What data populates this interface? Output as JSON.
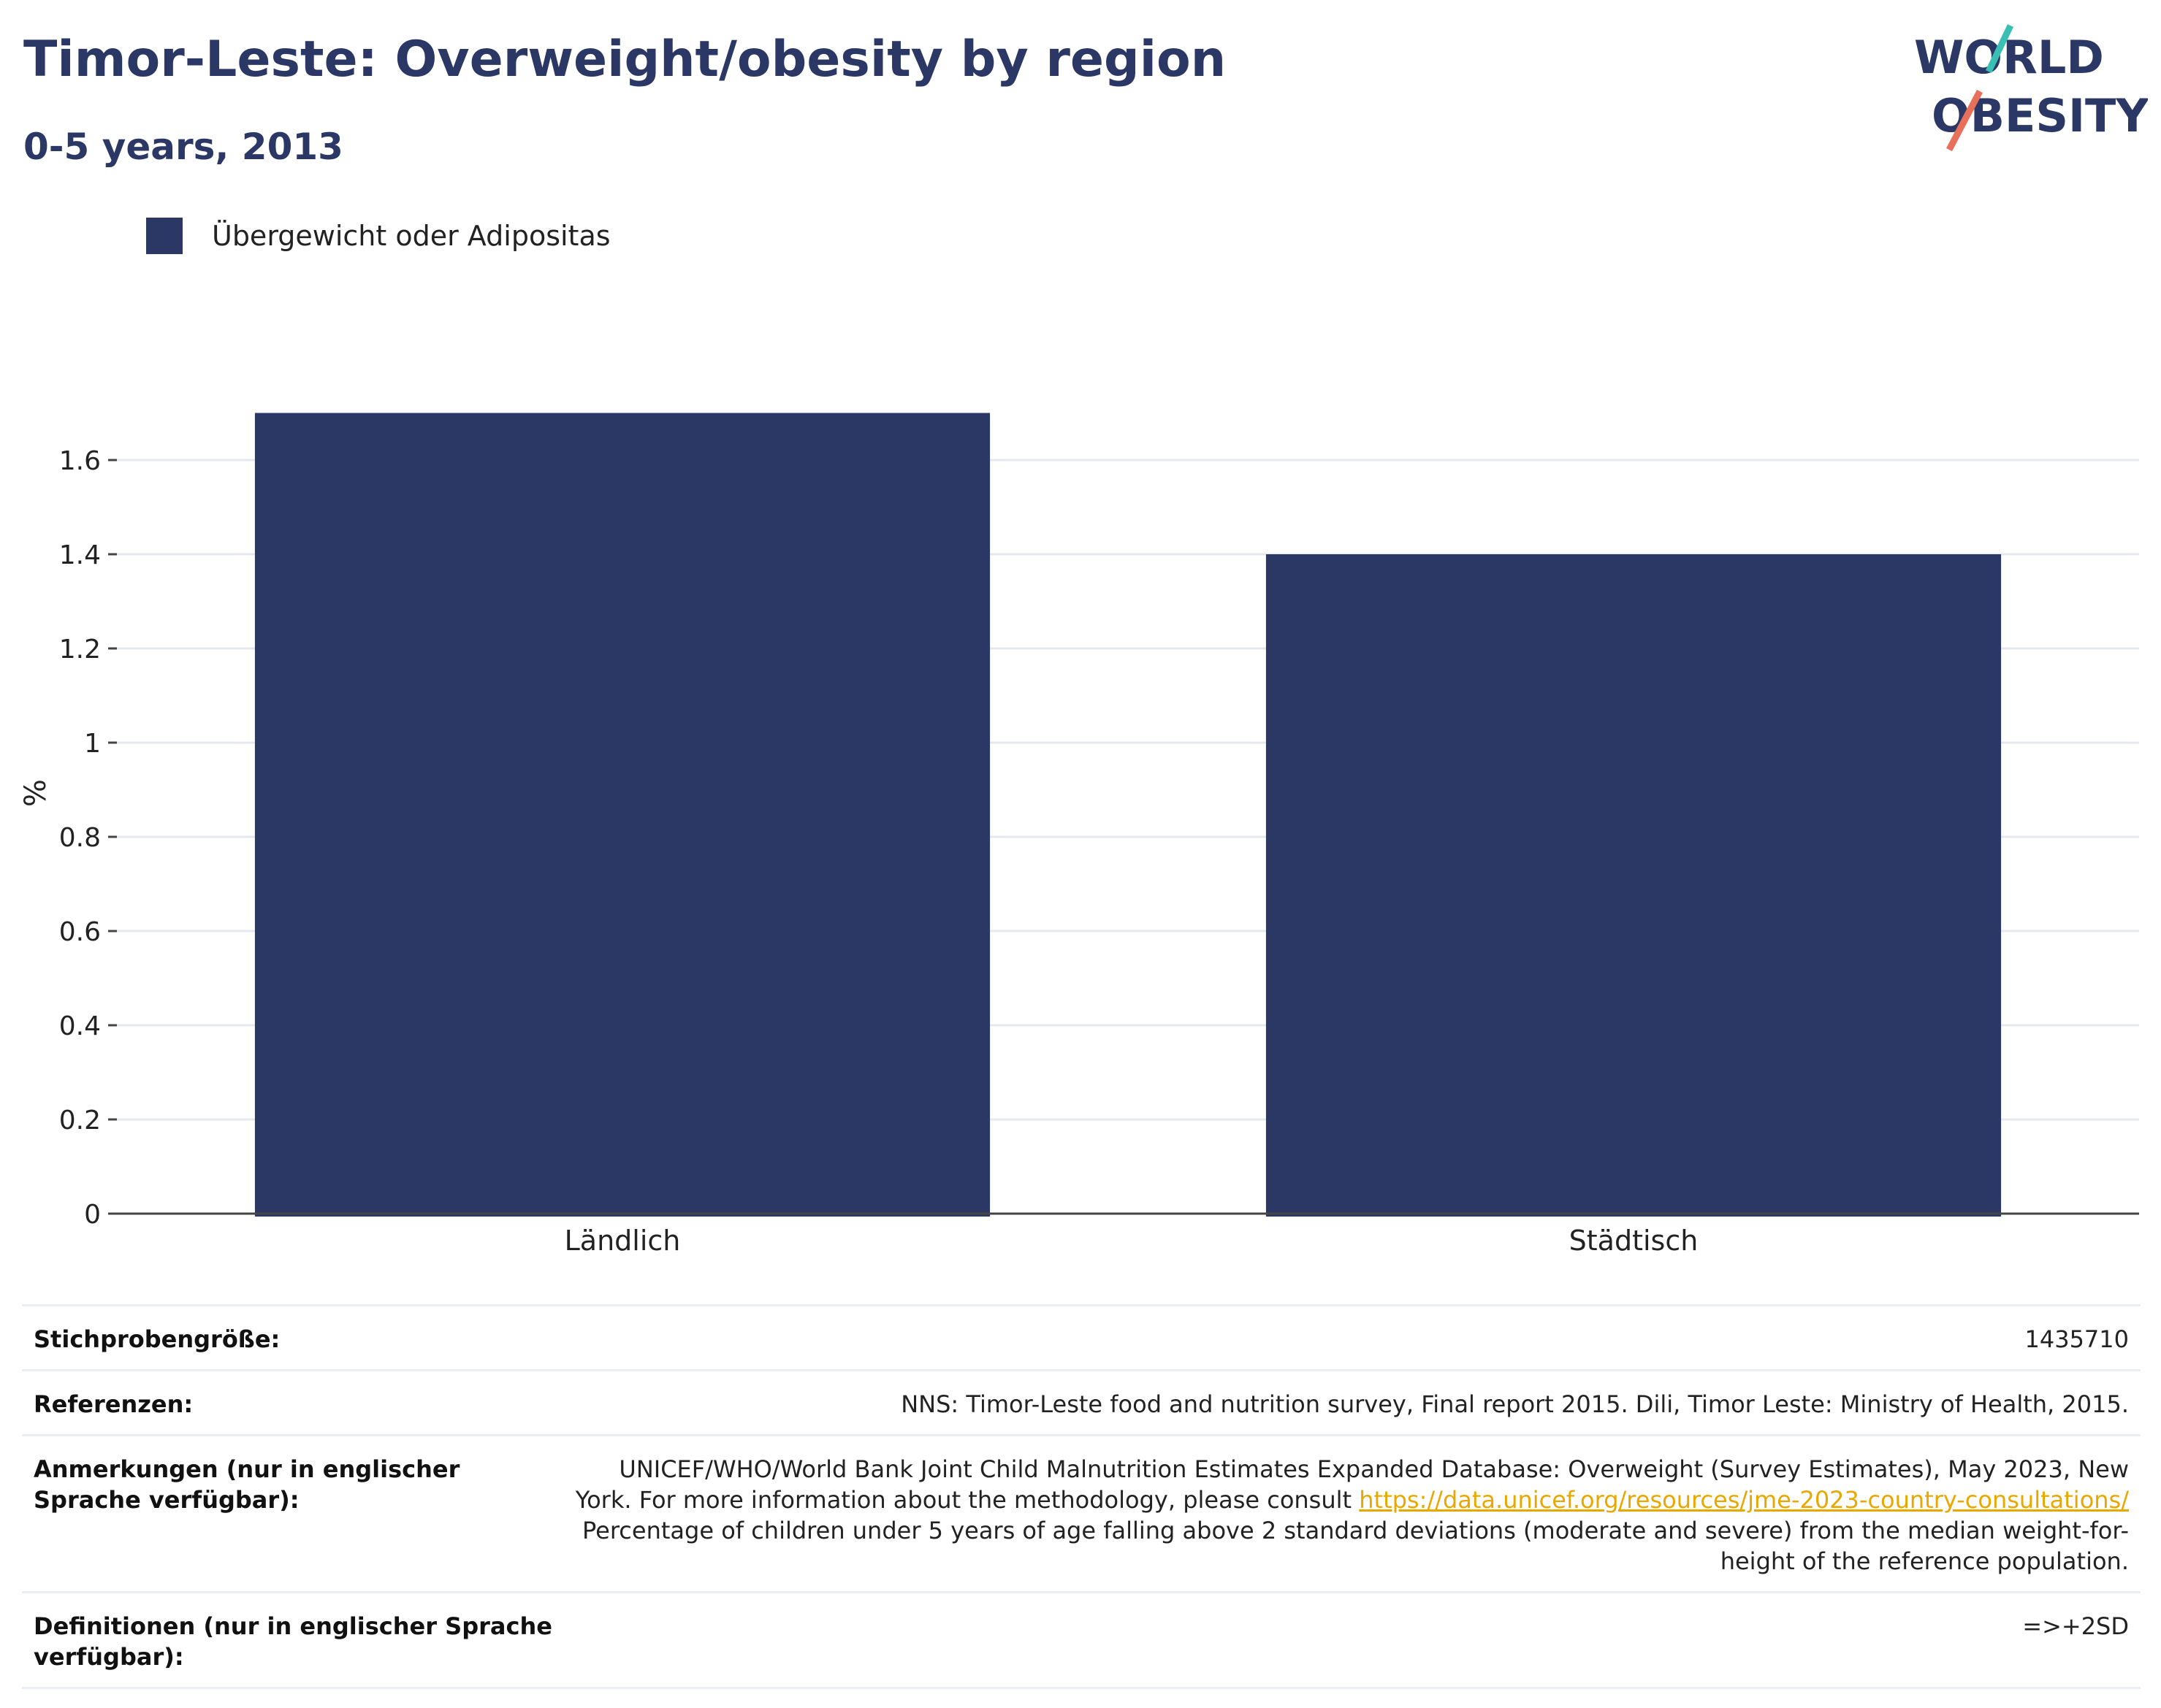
{
  "header": {
    "title": "Timor-Leste: Overweight/obesity by region",
    "subtitle": "0-5 years, 2013"
  },
  "logo": {
    "line1": "WORLD",
    "line2": "OBESITY",
    "accent_teal": "#3bbfb4",
    "accent_coral": "#e8705a",
    "text_color": "#2b3764"
  },
  "legend": {
    "label": "Übergewicht oder Adipositas",
    "color": "#2b3764"
  },
  "chart_data": {
    "type": "bar",
    "categories": [
      "Ländlich",
      "Städtisch"
    ],
    "series": [
      {
        "name": "Übergewicht oder Adipositas",
        "values": [
          1.7,
          1.4
        ],
        "color": "#2b3764"
      }
    ],
    "ylabel": "%",
    "xlabel": "",
    "ylim": [
      0,
      1.8
    ],
    "yticks": [
      0,
      0.2,
      0.4,
      0.6,
      0.8,
      1,
      1.2,
      1.4,
      1.6
    ],
    "ytick_labels": [
      "0",
      "0.2",
      "0.4",
      "0.6",
      "0.8",
      "1",
      "1.2",
      "1.4",
      "1.6"
    ],
    "grid": true,
    "legend_position": "top-left"
  },
  "metadata": {
    "sample_size_label": "Stichprobengröße:",
    "sample_size_value": "1435710",
    "references_label": "Referenzen:",
    "references_value": "NNS: Timor-Leste food and nutrition survey, Final report 2015. Dili, Timor Leste: Ministry of Health, 2015.",
    "notes_label": "Anmerkungen (nur in englischer Sprache verfügbar):",
    "notes_text_1": "UNICEF/WHO/World Bank Joint Child Malnutrition Estimates Expanded Database: Overweight (Survey Estimates), May 2023, New York. For more information about the methodology, please consult ",
    "notes_link": "https://data.unicef.org/resources/jme-2023-country-consultations/",
    "notes_text_2": "Percentage of children under 5 years of age falling above 2 standard deviations (moderate and severe) from the median weight-for-height of the reference population.",
    "definitions_label": "Definitionen (nur in englischer Sprache verfügbar):",
    "definitions_value": "=>+2SD"
  }
}
